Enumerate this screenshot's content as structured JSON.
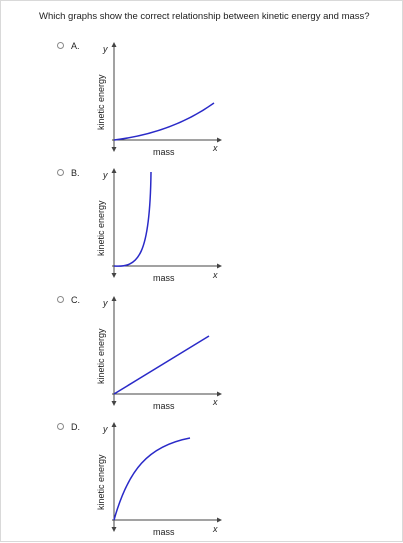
{
  "question": "Which graphs show the correct relationship between kinetic energy and mass?",
  "colors": {
    "curve": "#2a2ac8",
    "axis": "#444444"
  },
  "options": [
    {
      "letter": "A.",
      "x_label": "x",
      "y_label": "y",
      "x_axis_title": "mass",
      "y_axis_title": "kinetic energy",
      "shape": "gentle-rise"
    },
    {
      "letter": "B.",
      "x_label": "x",
      "y_label": "y",
      "x_axis_title": "mass",
      "y_axis_title": "kinetic energy",
      "shape": "steep-rise"
    },
    {
      "letter": "C.",
      "x_label": "x",
      "y_label": "y",
      "x_axis_title": "mass",
      "y_axis_title": "kinetic energy",
      "shape": "linear"
    },
    {
      "letter": "D.",
      "x_label": "x",
      "y_label": "y",
      "x_axis_title": "mass",
      "y_axis_title": "kinetic energy",
      "shape": "saturating"
    }
  ]
}
